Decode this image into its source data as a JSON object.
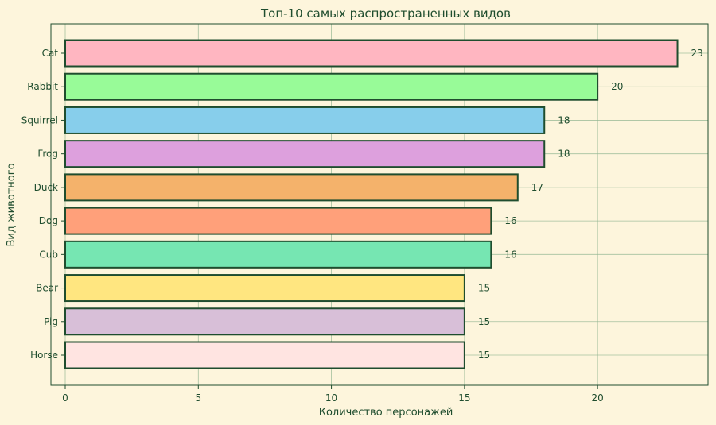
{
  "chart_data": {
    "type": "bar",
    "orientation": "horizontal",
    "title": "Топ-10 самых распространенных видов",
    "xlabel": "Количество персонажей",
    "ylabel": "Вид животного",
    "categories": [
      "Cat",
      "Rabbit",
      "Squirrel",
      "Frog",
      "Duck",
      "Dog",
      "Cub",
      "Bear",
      "Pig",
      "Horse"
    ],
    "values": [
      23,
      20,
      18,
      18,
      17,
      16,
      16,
      15,
      15,
      15
    ],
    "data_labels": [
      "23",
      "20",
      "18",
      "18",
      "17",
      "16",
      "16",
      "15",
      "15",
      "15"
    ],
    "colors": [
      "#ffb6c1",
      "#98fb98",
      "#87ceeb",
      "#dda0dd",
      "#f4b26b",
      "#ffa07a",
      "#76e6b2",
      "#ffe680",
      "#d8bfd8",
      "#ffe4e1"
    ],
    "xlim": [
      0,
      24.15
    ],
    "xticks": [
      0,
      5,
      10,
      15,
      20
    ],
    "xtick_labels": [
      "0",
      "5",
      "10",
      "15",
      "20"
    ],
    "grid": true,
    "background": "#fdf5dc",
    "text_color": "#1f4d2e",
    "edge_color": "#1f4d2e"
  }
}
